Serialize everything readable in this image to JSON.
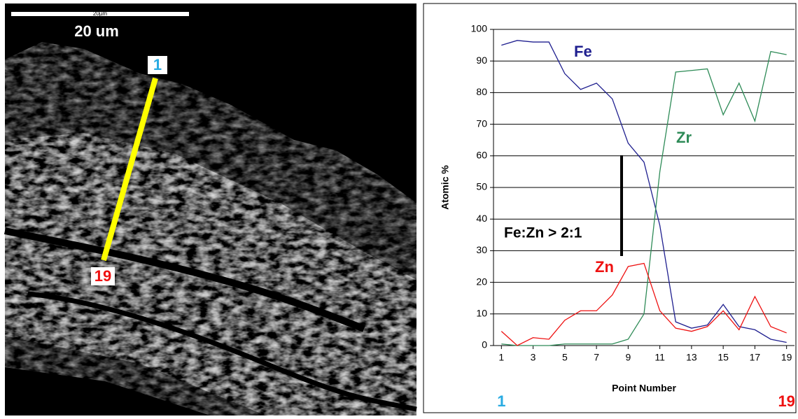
{
  "chart_data": {
    "type": "line",
    "x_label": "Point Number",
    "y_label": "Atomic %",
    "x": [
      1,
      2,
      3,
      4,
      5,
      6,
      7,
      8,
      9,
      10,
      11,
      12,
      13,
      14,
      15,
      16,
      17,
      18,
      19
    ],
    "series": [
      {
        "name": "Fe",
        "color": "#1f1f8f",
        "values": [
          95,
          96.5,
          96,
          96,
          86,
          81,
          83,
          78,
          64,
          58,
          38,
          7.5,
          5.5,
          6.5,
          13,
          6,
          5,
          2,
          1
        ]
      },
      {
        "name": "Zr",
        "color": "#2e8b57",
        "values": [
          0.5,
          0,
          0,
          0,
          0.5,
          0.5,
          0.5,
          0.5,
          2,
          10,
          55,
          86.5,
          87,
          87.5,
          73,
          83,
          71,
          93,
          92
        ]
      },
      {
        "name": "Zn",
        "color": "#ee1111",
        "values": [
          4.5,
          0,
          2.5,
          2,
          8,
          11,
          11,
          16,
          25,
          26,
          11,
          5.5,
          4.5,
          6,
          11,
          5,
          15.5,
          6,
          4
        ]
      }
    ],
    "xlim": [
      0.5,
      19.5
    ],
    "xticks": [
      1,
      3,
      5,
      7,
      9,
      11,
      13,
      15,
      17,
      19
    ],
    "ylim": [
      0,
      100
    ],
    "yticks": [
      0,
      10,
      20,
      30,
      40,
      50,
      60,
      70,
      80,
      90,
      100
    ],
    "grid": true,
    "annotations": [
      "Fe:Zn > 2:1",
      "1",
      "19"
    ]
  },
  "image": {
    "scale_small": "20µm",
    "scale_large": "20 um",
    "start_label": "1",
    "end_label": "19"
  }
}
